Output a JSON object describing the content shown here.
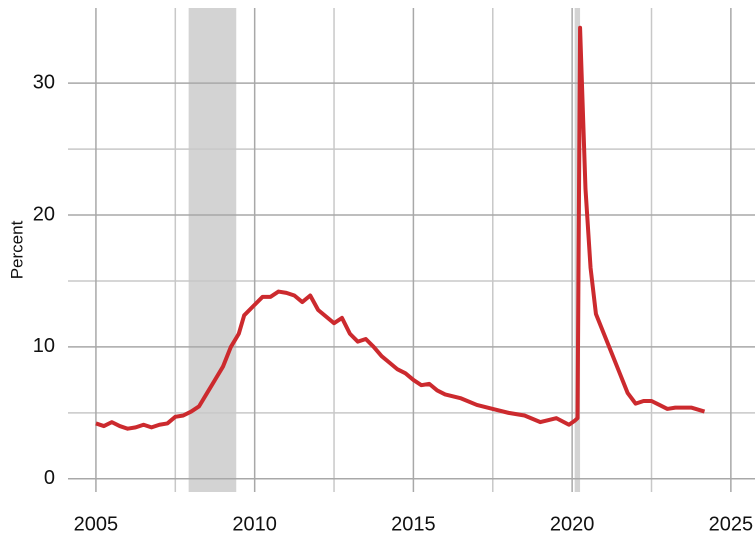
{
  "chart_data": {
    "type": "line",
    "y_label": "Percent",
    "x": [
      2005.0,
      2005.25,
      2005.5,
      2005.75,
      2006.0,
      2006.25,
      2006.5,
      2006.75,
      2007.0,
      2007.25,
      2007.5,
      2007.75,
      2008.0,
      2008.25,
      2008.5,
      2008.75,
      2009.0,
      2009.25,
      2009.5,
      2009.67,
      2010.0,
      2010.25,
      2010.5,
      2010.75,
      2011.0,
      2011.25,
      2011.5,
      2011.75,
      2012.0,
      2012.5,
      2012.75,
      2013.0,
      2013.25,
      2013.5,
      2013.75,
      2014.0,
      2014.25,
      2014.5,
      2014.75,
      2015.0,
      2015.25,
      2015.5,
      2015.75,
      2016.0,
      2016.5,
      2017.0,
      2017.5,
      2018.0,
      2018.5,
      2019.0,
      2019.5,
      2019.9,
      2020.08,
      2020.17,
      2020.25,
      2020.42,
      2020.58,
      2020.75,
      2021.0,
      2021.25,
      2021.5,
      2021.75,
      2022.0,
      2022.25,
      2022.5,
      2022.75,
      2023.0,
      2023.25,
      2023.5,
      2023.75,
      2024.17
    ],
    "series": [
      {
        "color": "#cc2a2e",
        "values": [
          4.2,
          4.0,
          4.3,
          4.0,
          3.8,
          3.9,
          4.1,
          3.9,
          4.1,
          4.2,
          4.7,
          4.8,
          5.1,
          5.5,
          6.5,
          7.5,
          8.5,
          10.0,
          11.0,
          12.4,
          13.2,
          13.8,
          13.8,
          14.2,
          14.1,
          13.9,
          13.4,
          13.9,
          12.8,
          11.8,
          12.2,
          11.0,
          10.4,
          10.6,
          10.0,
          9.3,
          8.8,
          8.3,
          8.0,
          7.5,
          7.1,
          7.2,
          6.7,
          6.4,
          6.1,
          5.6,
          5.3,
          5.0,
          4.8,
          4.3,
          4.6,
          4.1,
          4.4,
          4.6,
          34.2,
          22.0,
          16.0,
          12.5,
          11.0,
          9.5,
          8.0,
          6.5,
          5.7,
          5.9,
          5.9,
          5.6,
          5.3,
          5.4,
          5.4,
          5.4,
          5.1
        ]
      }
    ],
    "shaded_periods": [
      [
        2007.92,
        2009.42
      ],
      [
        2020.08,
        2020.25
      ]
    ],
    "shade_color": "#d3d3d3",
    "xlim": [
      2004.12,
      2025.76
    ],
    "xticks": [
      2005,
      2010,
      2015,
      2020,
      2025
    ],
    "xminor": [
      2007.5,
      2012.5,
      2017.5,
      2022.5
    ],
    "ylim": [
      -1,
      35.7
    ],
    "yticks": [
      0,
      10,
      20,
      30
    ],
    "yminor": [
      5,
      15,
      25
    ],
    "grid": true
  }
}
